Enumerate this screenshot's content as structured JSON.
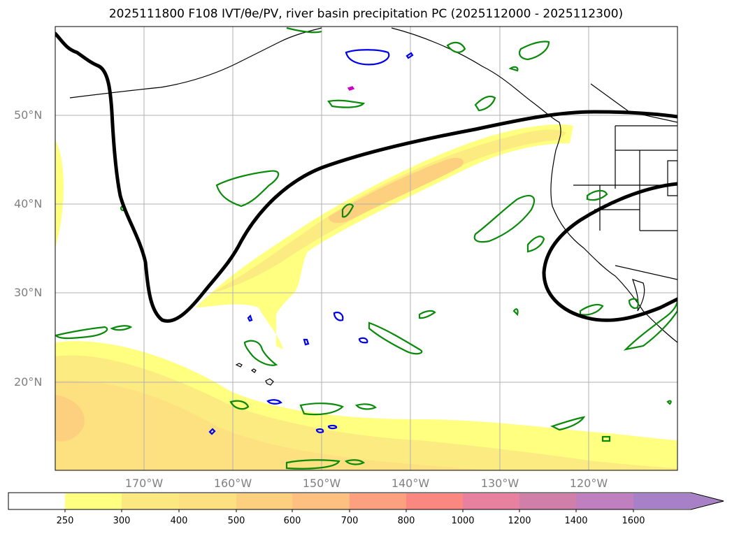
{
  "title": "2025111800 F108 IVT/θe/PV, river basin precipitation PC (2025112000 - 2025112300)",
  "map": {
    "lat_labels": [
      "50°N",
      "40°N",
      "30°N",
      "20°N"
    ],
    "lon_labels": [
      "170°W",
      "160°W",
      "150°W",
      "140°W",
      "130°W",
      "120°W"
    ]
  },
  "colorbar": {
    "ticks": [
      "250",
      "300",
      "400",
      "500",
      "600",
      "700",
      "800",
      "1000",
      "1200",
      "1400",
      "1600"
    ],
    "colors": [
      "#ffffff",
      "#ffff80",
      "#fbeb80",
      "#fde080",
      "#fdd080",
      "#fdc080",
      "#fda080",
      "#fb8080",
      "#e880a0",
      "#d080a8",
      "#c080c0",
      "#a880c8"
    ]
  }
}
